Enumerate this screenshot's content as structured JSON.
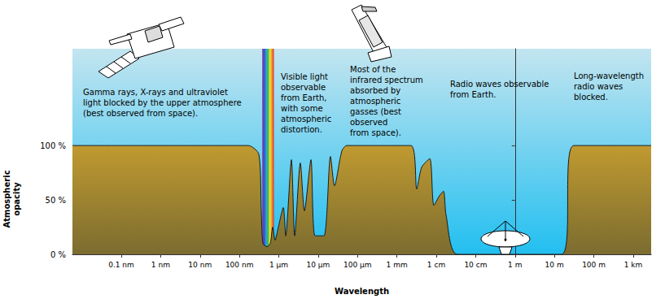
{
  "chart_data": {
    "type": "area",
    "x_label": "Wavelength",
    "y_label": "Atmospheric\nopacity",
    "log": "x",
    "grid": false,
    "color": "#c09a30",
    "x": [
      5.75e-12,
      1.67e-07,
      3.11e-07,
      3.59e-07,
      3.95e-07,
      5.01e-07,
      6.07e-07,
      7e-07,
      8.07e-07,
      9.75e-07,
      1.3e-06,
      1.5e-06,
      2.09e-06,
      2.53e-06,
      3.52e-06,
      4.48e-06,
      6.55e-06,
      8.3e-06,
      1.4e-05,
      2.05e-05,
      2.6e-05,
      3.99e-05,
      5.31e-05,
      0.00228,
      0.00318,
      0.00424,
      0.00683,
      0.00865,
      0.0121,
      0.0153,
      0.0177,
      0.0344,
      15.2,
      31.0,
      2860
    ],
    "values": [
      100,
      100,
      92,
      40,
      10,
      7,
      10,
      25,
      13,
      25,
      43,
      17,
      87,
      17,
      84,
      40,
      87,
      17,
      17,
      90,
      63,
      95,
      100,
      100,
      60,
      80,
      88,
      45,
      54,
      58,
      36,
      0,
      0,
      100,
      100
    ],
    "xlim": [
      5.75e-12,
      2860
    ],
    "ylim": [
      0,
      189
    ],
    "xticks": [
      {
        "value": 1e-10,
        "label": "0.1 nm"
      },
      {
        "value": 1e-09,
        "label": "1 nm"
      },
      {
        "value": 1e-08,
        "label": "10 nm"
      },
      {
        "value": 1e-07,
        "label": "100 nm"
      },
      {
        "value": 1e-06,
        "label": "1 µm"
      },
      {
        "value": 1e-05,
        "label": "10 µm"
      },
      {
        "value": 0.0001,
        "label": "100 µm"
      },
      {
        "value": 0.001,
        "label": "1 mm"
      },
      {
        "value": 0.01,
        "label": "1 cm"
      },
      {
        "value": 0.1,
        "label": "10 cm"
      },
      {
        "value": 1,
        "label": "1 m"
      },
      {
        "value": 10,
        "label": "10 m"
      },
      {
        "value": 100,
        "label": "100 m"
      },
      {
        "value": 1000,
        "label": "1 km"
      }
    ],
    "yticks": [
      {
        "value": 0,
        "label": "0 %"
      },
      {
        "value": 50,
        "label": "50 %"
      },
      {
        "value": 100,
        "label": "100 %"
      }
    ],
    "visible_band": [
      3.8e-07,
      7.5e-07
    ],
    "annotations": [
      "Gamma rays, X-rays and ultraviolet\nlight blocked by the upper atmosphere\n(best observed from space).",
      "Visible light\nobservable\nfrom Earth,\nwith some\natmospheric\ndistortion.",
      "Most of the\ninfrared spectrum\nabsorbed by\natmospheric\ngasses (best\nobserved\nfrom space).",
      "Radio waves observable\nfrom Earth.",
      "Long-wavelength\nradio waves\nblocked."
    ]
  }
}
